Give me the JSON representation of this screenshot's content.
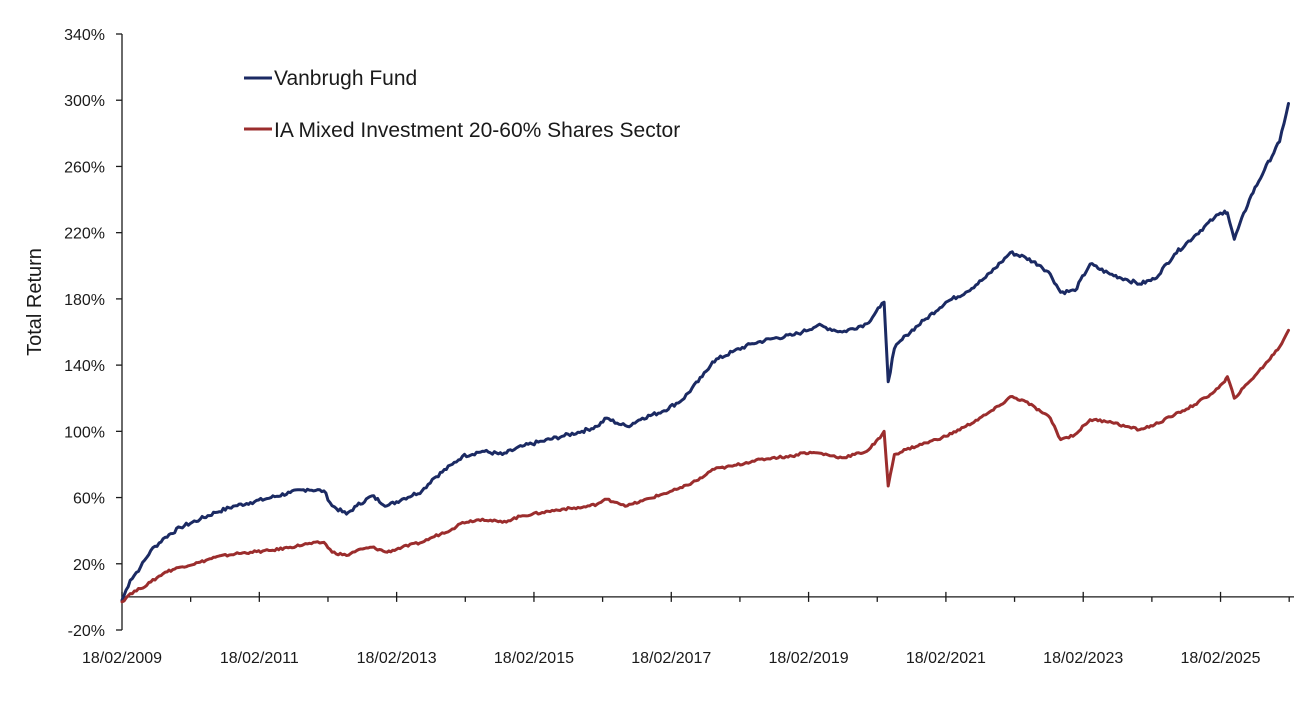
{
  "chart_data": {
    "type": "line",
    "title": "",
    "xlabel": "",
    "ylabel": "Total Return",
    "x_type": "date",
    "x_range": [
      "18/02/2009",
      "2026-02"
    ],
    "ylim": [
      -20,
      340
    ],
    "y_ticks": [
      -20,
      20,
      60,
      100,
      140,
      180,
      220,
      260,
      300,
      340
    ],
    "y_tick_labels": [
      "-20%",
      "20%",
      "60%",
      "100%",
      "140%",
      "180%",
      "220%",
      "260%",
      "300%",
      "340%"
    ],
    "x_tick_labels": [
      "18/02/2009",
      "18/02/2011",
      "18/02/2013",
      "18/02/2015",
      "18/02/2017",
      "18/02/2019",
      "18/02/2021",
      "18/02/2023",
      "18/02/2025"
    ],
    "x_major_tick_years": [
      2009.13,
      2011.13,
      2013.13,
      2015.13,
      2017.13,
      2019.13,
      2021.13,
      2023.13,
      2025.13
    ],
    "x_minor_tick_years": [
      2010.13,
      2012.13,
      2014.13,
      2016.13,
      2018.13,
      2020.13,
      2022.13,
      2024.13,
      2026.13
    ],
    "grid": false,
    "legend_position": "top-left",
    "x_axis_crosses_at": 0,
    "series": [
      {
        "name": "Vanbrugh Fund",
        "color": "#1b2a63",
        "x": [
          2009.13,
          2009.25,
          2009.4,
          2009.55,
          2009.76,
          2009.98,
          2010.27,
          2010.49,
          2010.78,
          2011.0,
          2011.3,
          2011.58,
          2011.83,
          2012.07,
          2012.19,
          2012.4,
          2012.55,
          2012.77,
          2012.99,
          2013.21,
          2013.5,
          2013.65,
          2013.94,
          2014.09,
          2014.38,
          2014.67,
          2014.96,
          2015.25,
          2015.54,
          2015.83,
          2016.05,
          2016.19,
          2016.34,
          2016.49,
          2016.71,
          2017.0,
          2017.29,
          2017.58,
          2017.73,
          2018.02,
          2018.31,
          2018.6,
          2018.89,
          2019.04,
          2019.26,
          2019.62,
          2019.98,
          2020.17,
          2020.23,
          2020.29,
          2020.38,
          2020.55,
          2020.84,
          2021.13,
          2021.42,
          2021.71,
          2021.93,
          2022.07,
          2022.29,
          2022.51,
          2022.65,
          2022.8,
          2023.01,
          2023.23,
          2023.52,
          2023.74,
          2023.95,
          2024.17,
          2024.46,
          2024.75,
          2025.04,
          2025.19,
          2025.23,
          2025.33,
          2025.55,
          2025.77,
          2025.99,
          2026.12
        ],
        "values": [
          -2,
          10,
          18,
          28,
          36,
          42,
          47,
          51,
          55,
          57,
          60,
          63,
          65,
          64,
          55,
          50,
          55,
          61,
          55,
          59,
          64,
          71,
          80,
          85,
          88,
          86,
          91,
          94,
          97,
          100,
          103,
          108,
          105,
          103,
          108,
          112,
          119,
          133,
          142,
          148,
          153,
          156,
          158,
          160,
          164,
          160,
          165,
          175,
          178,
          130,
          150,
          158,
          168,
          178,
          184,
          193,
          202,
          208,
          205,
          200,
          195,
          184,
          185,
          201,
          195,
          192,
          189,
          192,
          207,
          218,
          229,
          233,
          232,
          216,
          240,
          258,
          275,
          298
        ]
      },
      {
        "name": "IA Mixed Investment 20-60% Shares Sector",
        "color": "#9b2d2d",
        "x": [
          2009.13,
          2009.25,
          2009.4,
          2009.55,
          2009.76,
          2009.98,
          2010.27,
          2010.49,
          2010.78,
          2011.0,
          2011.3,
          2011.58,
          2011.83,
          2012.07,
          2012.19,
          2012.4,
          2012.55,
          2012.77,
          2012.99,
          2013.21,
          2013.5,
          2013.65,
          2013.94,
          2014.09,
          2014.38,
          2014.67,
          2014.96,
          2015.25,
          2015.54,
          2015.83,
          2016.05,
          2016.19,
          2016.34,
          2016.49,
          2016.71,
          2017.0,
          2017.29,
          2017.58,
          2017.73,
          2018.02,
          2018.31,
          2018.6,
          2018.89,
          2019.04,
          2019.26,
          2019.62,
          2019.98,
          2020.17,
          2020.23,
          2020.29,
          2020.38,
          2020.55,
          2020.84,
          2021.13,
          2021.42,
          2021.71,
          2021.93,
          2022.07,
          2022.29,
          2022.51,
          2022.65,
          2022.8,
          2023.01,
          2023.23,
          2023.52,
          2023.74,
          2023.95,
          2024.17,
          2024.46,
          2024.75,
          2025.04,
          2025.19,
          2025.23,
          2025.33,
          2025.55,
          2025.77,
          2025.99,
          2026.12
        ],
        "values": [
          -3,
          2,
          5,
          9,
          15,
          18,
          21,
          24,
          26,
          27,
          28,
          30,
          32,
          33,
          27,
          25,
          28,
          30,
          27,
          30,
          33,
          36,
          41,
          45,
          47,
          45,
          49,
          51,
          53,
          54,
          56,
          59,
          57,
          55,
          58,
          62,
          66,
          72,
          77,
          79,
          82,
          84,
          85,
          87,
          87,
          84,
          88,
          96,
          100,
          67,
          86,
          89,
          93,
          97,
          103,
          110,
          116,
          121,
          118,
          112,
          108,
          95,
          98,
          107,
          106,
          103,
          101,
          104,
          110,
          116,
          124,
          130,
          133,
          120,
          130,
          140,
          151,
          161
        ]
      }
    ]
  }
}
